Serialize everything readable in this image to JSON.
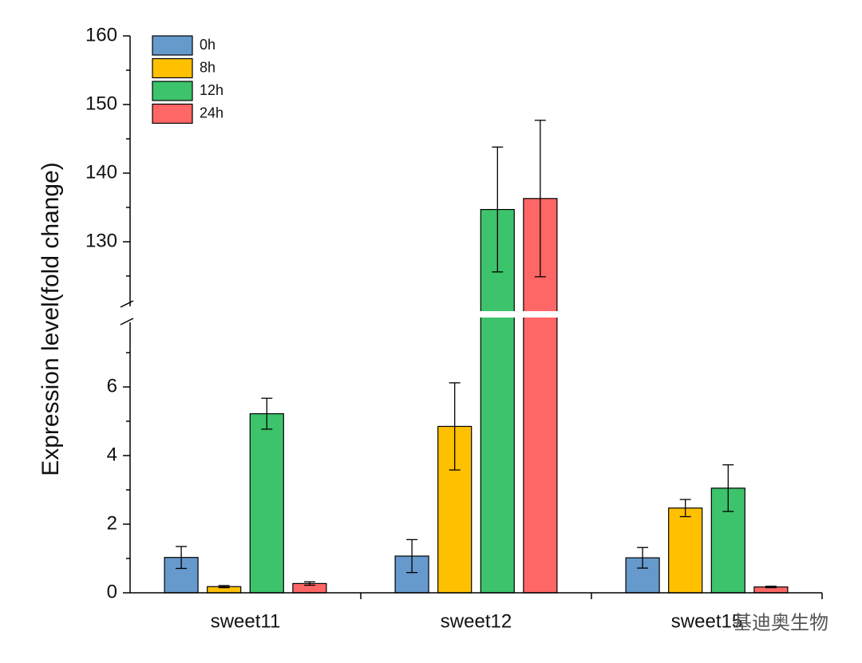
{
  "chart_data": {
    "type": "bar",
    "y_label": "Expression level(fold change)",
    "categories": [
      "sweet11",
      "sweet12",
      "sweet15"
    ],
    "series": [
      {
        "name": "0h",
        "color": "#6699cc",
        "values": [
          1.03,
          1.07,
          1.02
        ],
        "errors": [
          0.32,
          0.48,
          0.3
        ]
      },
      {
        "name": "8h",
        "color": "#ffc000",
        "values": [
          0.18,
          4.85,
          2.47
        ],
        "errors": [
          0.03,
          1.27,
          0.25
        ]
      },
      {
        "name": "12h",
        "color": "#3cc36b",
        "values": [
          5.22,
          134.7,
          3.05
        ],
        "errors": [
          0.45,
          9.1,
          0.68
        ]
      },
      {
        "name": "24h",
        "color": "#ff6666",
        "values": [
          0.27,
          136.3,
          0.17
        ],
        "errors": [
          0.05,
          11.4,
          0.02
        ]
      }
    ],
    "ylim": [
      0,
      160
    ],
    "axis_break": [
      8,
      120
    ],
    "yticks": [
      0,
      2,
      4,
      6,
      130,
      140,
      150,
      160
    ],
    "yminor": [
      1,
      3,
      5,
      7,
      125,
      135,
      145,
      155
    ],
    "legend": "top-left",
    "watermark": "基迪奥生物"
  }
}
